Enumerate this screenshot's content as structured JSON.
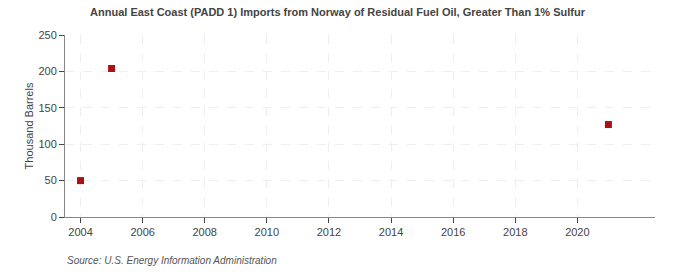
{
  "chart_data": {
    "type": "scatter",
    "title": "Annual East Coast (PADD 1) Imports from Norway of Residual Fuel Oil, Greater Than 1% Sulfur",
    "ylabel": "Thousand Barrels",
    "source": "Source: U.S. Energy Information Administration",
    "x": [
      2004,
      2005,
      2021
    ],
    "values": [
      50,
      204,
      127
    ],
    "color": "#aa1111",
    "marker": "square",
    "xlim": [
      2003.5,
      2022.5
    ],
    "ylim": [
      0,
      250
    ],
    "xticks": [
      2004,
      2006,
      2008,
      2010,
      2012,
      2014,
      2016,
      2018,
      2020
    ],
    "yticks": [
      0,
      50,
      100,
      150,
      200,
      250
    ],
    "grid": true
  }
}
